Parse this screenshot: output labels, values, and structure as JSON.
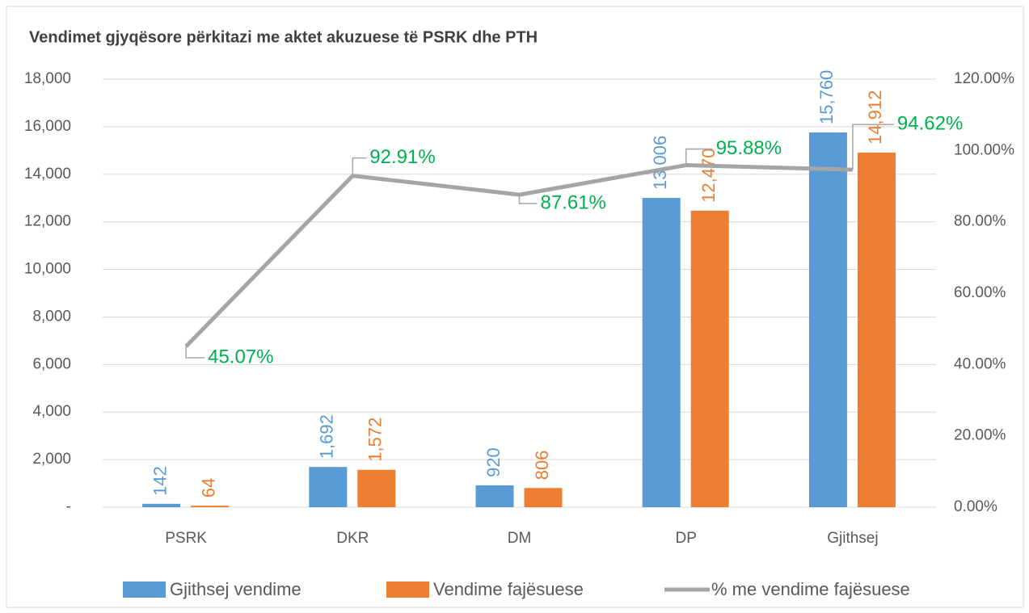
{
  "chart_data": {
    "type": "bar-line",
    "title": "Vendimet gjyqësore përkitazi me aktet akuzuese të PSRK dhe PTH",
    "categories": [
      "PSRK",
      "DKR",
      "DM",
      "DP",
      "Gjithsej"
    ],
    "series": [
      {
        "name": "Gjithsej vendime",
        "type": "bar",
        "color": "#5b9bd5",
        "values": [
          142,
          1692,
          920,
          13006,
          15760
        ],
        "value_labels": [
          "142",
          "1,692",
          "920",
          "13,006",
          "15,760"
        ]
      },
      {
        "name": "Vendime fajësuese",
        "type": "bar",
        "color": "#ed7d31",
        "values": [
          64,
          1572,
          806,
          12470,
          14912
        ],
        "value_labels": [
          "64",
          "1,572",
          "806",
          "12,470",
          "14,912"
        ]
      },
      {
        "name": "% me vendime fajësuese",
        "type": "line",
        "axis": "y2",
        "color": "#a5a5a5",
        "label_color": "#00b050",
        "values": [
          45.07,
          92.91,
          87.61,
          95.88,
          94.62
        ],
        "value_labels": [
          "45.07%",
          "92.91%",
          "87.61%",
          "95.88%",
          "94.62%"
        ]
      }
    ],
    "ylim": [
      0,
      18000
    ],
    "yticks": [
      {
        "value": 0,
        "label": "-"
      },
      {
        "value": 2000,
        "label": "2,000"
      },
      {
        "value": 4000,
        "label": "4,000"
      },
      {
        "value": 6000,
        "label": "6,000"
      },
      {
        "value": 8000,
        "label": "8,000"
      },
      {
        "value": 10000,
        "label": "10,000"
      },
      {
        "value": 12000,
        "label": "12,000"
      },
      {
        "value": 14000,
        "label": "14,000"
      },
      {
        "value": 16000,
        "label": "16,000"
      },
      {
        "value": 18000,
        "label": "18,000"
      }
    ],
    "y2lim": [
      0,
      120
    ],
    "y2ticks": [
      {
        "value": 0,
        "label": "0.00%"
      },
      {
        "value": 20,
        "label": "20.00%"
      },
      {
        "value": 40,
        "label": "40.00%"
      },
      {
        "value": 60,
        "label": "60.00%"
      },
      {
        "value": 80,
        "label": "80.00%"
      },
      {
        "value": 100,
        "label": "100.00%"
      },
      {
        "value": 120,
        "label": "120.00%"
      }
    ],
    "grid": true,
    "legend": "bottom"
  }
}
